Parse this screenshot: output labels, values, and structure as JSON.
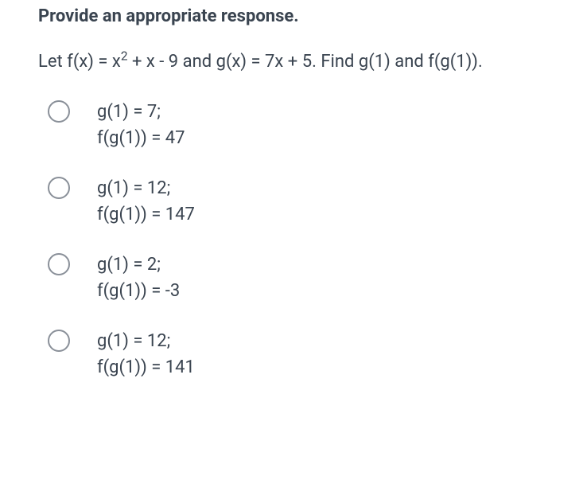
{
  "heading": "Provide an appropriate response.",
  "question": {
    "prefix": "Let f(x) = x",
    "exponent": "2",
    "suffix": " + x - 9 and g(x) = 7x + 5. Find g(1) and f(g(1))."
  },
  "options": [
    {
      "line1": "g(1) = 7;",
      "line2": "f(g(1)) = 47"
    },
    {
      "line1": "g(1) = 12;",
      "line2": "f(g(1)) = 147"
    },
    {
      "line1": "g(1) = 2;",
      "line2": "f(g(1)) = -3"
    },
    {
      "line1": "g(1) = 12;",
      "line2": "f(g(1)) = 141"
    }
  ],
  "styles": {
    "text_color": "#3a4450",
    "radio_border_color": "#8a9099",
    "background_color": "#ffffff",
    "heading_fontsize": 22,
    "body_fontsize": 22
  }
}
